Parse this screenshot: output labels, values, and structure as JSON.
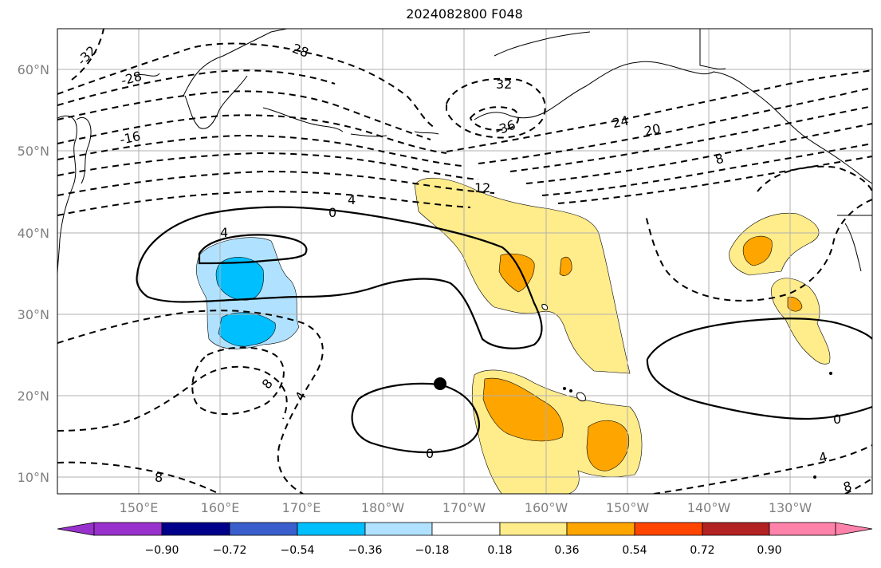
{
  "title": "2024082800 F048",
  "map": {
    "lat_labels": [
      "60°N",
      "50°N",
      "40°N",
      "30°N",
      "20°N",
      "10°N"
    ],
    "lon_labels": [
      "150°E",
      "160°E",
      "170°E",
      "180°W",
      "170°W",
      "160°W",
      "150°W",
      "140°W",
      "130°W"
    ],
    "marker": "filled black circle near 21.5°N 173°W"
  },
  "colorbar": {
    "tick_labels": [
      "−0.90",
      "−0.72",
      "−0.54",
      "−0.36",
      "−0.18",
      "0.18",
      "0.36",
      "0.54",
      "0.72",
      "0.90"
    ],
    "colors": [
      "#9932cc",
      "#00008b",
      "#3a5fcd",
      "#00bfff",
      "#b0e2ff",
      "#ffffff",
      "#ffec8b",
      "#ffa500",
      "#ff4500",
      "#b22222",
      "#ff82ab"
    ]
  },
  "contour_labels": {
    "c_m32a": "-32",
    "c_m28a": "-28",
    "c_m28b": "28",
    "c_m16": "-16",
    "c_m32b": "32",
    "c_m36": "-36",
    "c_24": "24",
    "c_20": "20",
    "c_8a": "8",
    "c_12": "12",
    "c_4a": "4",
    "c_0a": "0",
    "c_4b": "4",
    "c_8b": "8",
    "c_4c": "4",
    "c_0b": "0",
    "c_0c": "0",
    "c_4d": "4",
    "c_8c": "8",
    "c_8d": "8"
  }
}
